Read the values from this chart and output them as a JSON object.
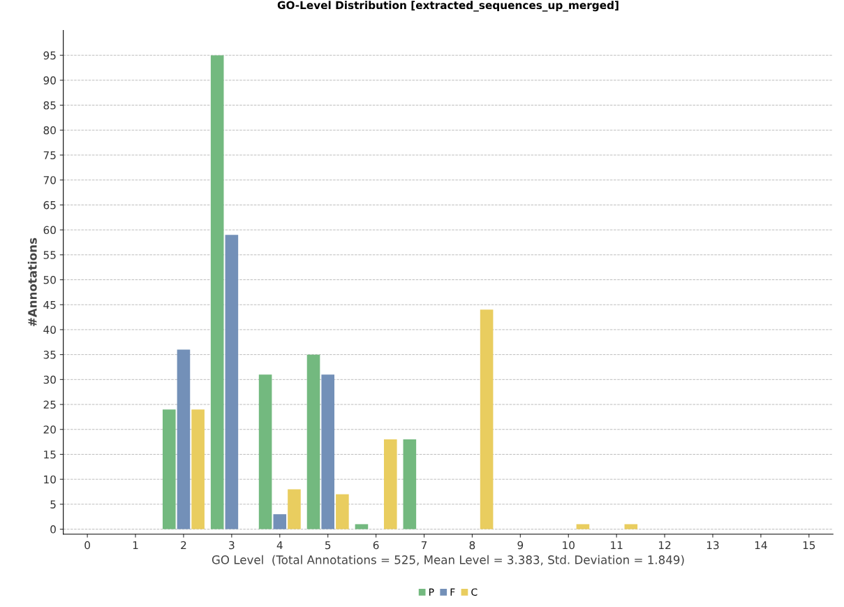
{
  "chart_data": {
    "type": "bar",
    "title": "GO-Level Distribution [extracted_sequences_up_merged]",
    "xlabel": "GO Level  (Total Annotations = 525, Mean Level = 3.383, Std. Deviation = 1.849)",
    "ylabel": "#Annotations",
    "categories": [
      "0",
      "1",
      "2",
      "3",
      "4",
      "5",
      "6",
      "7",
      "8",
      "9",
      "10",
      "11",
      "12",
      "13",
      "14",
      "15"
    ],
    "series": [
      {
        "name": "P",
        "color": "#73b97f",
        "values": [
          null,
          null,
          24,
          95,
          31,
          35,
          1,
          18,
          null,
          null,
          null,
          null,
          null,
          null,
          null,
          null
        ]
      },
      {
        "name": "F",
        "color": "#7390b8",
        "values": [
          null,
          null,
          36,
          59,
          3,
          31,
          null,
          null,
          null,
          null,
          null,
          null,
          null,
          null,
          null,
          null
        ]
      },
      {
        "name": "C",
        "color": "#e9cd5f",
        "values": [
          null,
          null,
          24,
          null,
          8,
          7,
          18,
          null,
          44,
          null,
          1,
          1,
          null,
          null,
          null,
          null
        ]
      }
    ],
    "ylim": [
      -1,
      100
    ],
    "yticks": [
      0,
      5,
      10,
      15,
      20,
      25,
      30,
      35,
      40,
      45,
      50,
      55,
      60,
      65,
      70,
      75,
      80,
      85,
      90,
      95
    ],
    "grid": "y",
    "legend": "bottom"
  }
}
